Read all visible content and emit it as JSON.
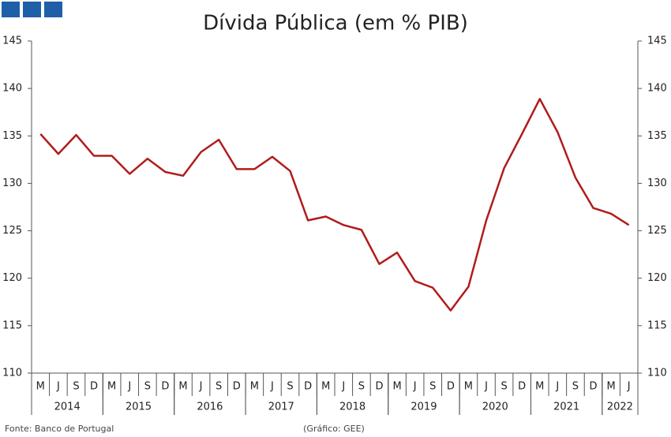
{
  "chart_data": {
    "type": "line",
    "title": "Dívida Pública (em % PIB)",
    "categories": [
      "M",
      "J",
      "S",
      "D",
      "M",
      "J",
      "S",
      "D",
      "M",
      "J",
      "S",
      "D",
      "M",
      "J",
      "S",
      "D",
      "M",
      "J",
      "S",
      "D",
      "M",
      "J",
      "S",
      "D",
      "M",
      "J",
      "S",
      "D",
      "M",
      "J",
      "S",
      "D",
      "M",
      "J"
    ],
    "years": [
      "2014",
      "2015",
      "2016",
      "2017",
      "2018",
      "2019",
      "2020",
      "2021",
      "2022"
    ],
    "series": [
      {
        "name": "Dívida Pública",
        "color": "#b01c1c",
        "values": [
          135.2,
          133.1,
          135.1,
          132.9,
          132.9,
          131.0,
          132.6,
          131.2,
          130.8,
          133.3,
          134.6,
          131.5,
          131.5,
          132.8,
          131.3,
          126.1,
          126.5,
          125.6,
          125.1,
          121.5,
          122.7,
          119.7,
          119.0,
          116.6,
          119.1,
          126.1,
          131.6,
          135.2,
          138.9,
          135.4,
          130.6,
          127.4,
          126.8,
          125.6
        ]
      }
    ],
    "ylim": [
      110,
      145
    ],
    "yticks": [
      110,
      115,
      120,
      125,
      130,
      135,
      140,
      145
    ],
    "y2lim": [
      110,
      145
    ],
    "y2ticks": [
      110,
      115,
      120,
      125,
      130,
      135,
      140,
      145
    ],
    "source": "Fonte: Banco de Portugal",
    "note": "(Gráfico: GEE)"
  }
}
